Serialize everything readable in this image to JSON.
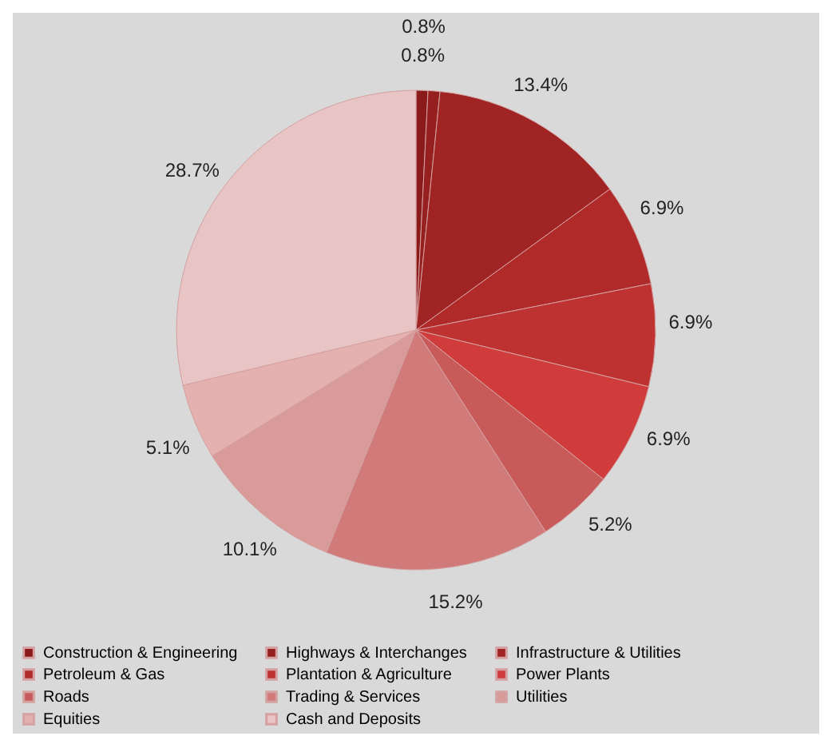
{
  "chart_data": {
    "type": "pie",
    "categories": [
      "Construction & Engineering",
      "Highways & Interchanges",
      "Infrastructure & Utilities",
      "Petroleum & Gas",
      "Plantation & Agriculture",
      "Power Plants",
      "Roads",
      "Trading & Services",
      "Utilities",
      "Equities",
      "Cash and Deposits"
    ],
    "values": [
      0.8,
      0.8,
      13.4,
      6.9,
      6.9,
      6.9,
      5.2,
      15.2,
      10.1,
      5.1,
      28.7
    ],
    "value_labels": [
      "0.8%",
      "0.8%",
      "13.4%",
      "6.9%",
      "6.9%",
      "6.9%",
      "5.2%",
      "15.2%",
      "10.1%",
      "5.1%",
      "28.7%"
    ],
    "colors": [
      "#8b1a1a",
      "#962020",
      "#a12424",
      "#b02a2a",
      "#bf3232",
      "#d03c3c",
      "#c85a5a",
      "#d07a7a",
      "#d99a9a",
      "#e4b0b0",
      "#e8c4c4"
    ],
    "legend": "bottom"
  }
}
